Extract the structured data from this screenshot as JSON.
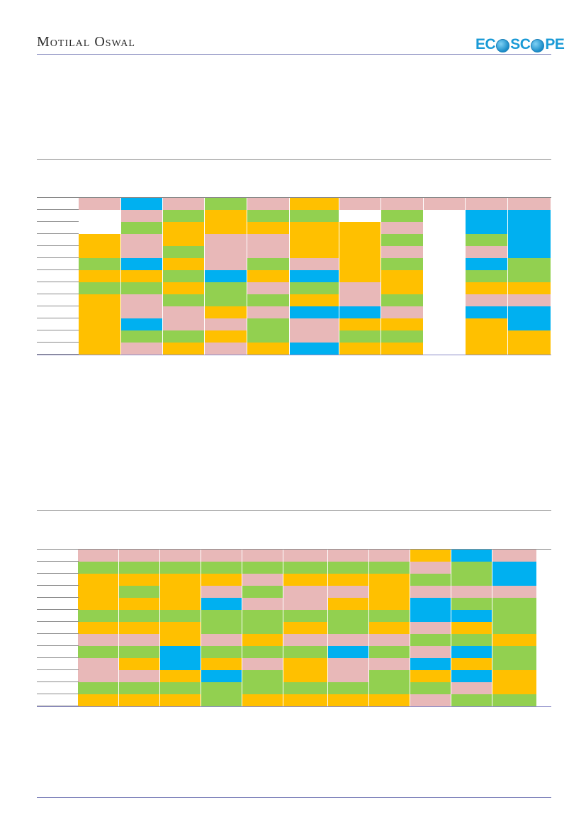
{
  "header": {
    "brand": "Motilal Oswal",
    "logo_left": "EC",
    "logo_right": "SC",
    "logo_end": "PE"
  },
  "colors": {
    "pink": "#E8B8B8",
    "blue": "#00B0F0",
    "green": "#92D050",
    "gold": "#FFC000",
    "white": "#FFFFFF"
  },
  "heatmaps": [
    {
      "columns": 12,
      "rows": [
        [
          "",
          "pink",
          "blue",
          "pink",
          "green",
          "pink",
          "gold",
          "pink",
          "pink",
          "pink",
          "pink",
          "pink"
        ],
        [
          "",
          "white",
          "pink",
          "green",
          "gold",
          "green",
          "green",
          "white",
          "green",
          "white",
          "blue",
          "blue"
        ],
        [
          "",
          "white",
          "green",
          "gold",
          "gold",
          "gold",
          "gold",
          "gold",
          "pink",
          "white",
          "blue",
          "blue"
        ],
        [
          "",
          "gold",
          "pink",
          "gold",
          "pink",
          "pink",
          "gold",
          "gold",
          "green",
          "white",
          "green",
          "blue"
        ],
        [
          "",
          "gold",
          "pink",
          "green",
          "pink",
          "pink",
          "gold",
          "gold",
          "pink",
          "white",
          "pink",
          "blue"
        ],
        [
          "",
          "green",
          "blue",
          "gold",
          "pink",
          "green",
          "pink",
          "gold",
          "green",
          "white",
          "blue",
          "green"
        ],
        [
          "",
          "gold",
          "gold",
          "green",
          "blue",
          "gold",
          "blue",
          "gold",
          "gold",
          "white",
          "green",
          "green"
        ],
        [
          "",
          "green",
          "green",
          "gold",
          "green",
          "pink",
          "green",
          "pink",
          "gold",
          "white",
          "gold",
          "gold"
        ],
        [
          "",
          "gold",
          "pink",
          "green",
          "green",
          "green",
          "gold",
          "pink",
          "green",
          "white",
          "pink",
          "pink"
        ],
        [
          "",
          "gold",
          "pink",
          "pink",
          "gold",
          "pink",
          "blue",
          "blue",
          "pink",
          "white",
          "blue",
          "blue"
        ],
        [
          "",
          "gold",
          "blue",
          "pink",
          "pink",
          "green",
          "pink",
          "gold",
          "gold",
          "white",
          "gold",
          "blue"
        ],
        [
          "",
          "gold",
          "green",
          "green",
          "gold",
          "green",
          "pink",
          "green",
          "green",
          "white",
          "gold",
          "gold"
        ],
        [
          "",
          "gold",
          "pink",
          "gold",
          "pink",
          "gold",
          "blue",
          "gold",
          "gold",
          "white",
          "gold",
          "gold"
        ]
      ]
    },
    {
      "columns": 12,
      "rows": [
        [
          "",
          "pink",
          "pink",
          "pink",
          "pink",
          "pink",
          "pink",
          "pink",
          "pink",
          "gold",
          "blue",
          "pink"
        ],
        [
          "",
          "green",
          "green",
          "green",
          "green",
          "green",
          "green",
          "green",
          "green",
          "pink",
          "green",
          "blue"
        ],
        [
          "",
          "gold",
          "gold",
          "gold",
          "gold",
          "pink",
          "gold",
          "gold",
          "gold",
          "green",
          "green",
          "blue"
        ],
        [
          "",
          "gold",
          "green",
          "gold",
          "pink",
          "green",
          "pink",
          "pink",
          "gold",
          "pink",
          "pink",
          "pink"
        ],
        [
          "",
          "gold",
          "gold",
          "gold",
          "blue",
          "pink",
          "pink",
          "gold",
          "gold",
          "blue",
          "green",
          "green"
        ],
        [
          "",
          "green",
          "green",
          "green",
          "green",
          "green",
          "green",
          "green",
          "green",
          "blue",
          "blue",
          "green"
        ],
        [
          "",
          "gold",
          "gold",
          "gold",
          "green",
          "green",
          "gold",
          "green",
          "gold",
          "pink",
          "gold",
          "green"
        ],
        [
          "",
          "pink",
          "pink",
          "gold",
          "pink",
          "gold",
          "pink",
          "pink",
          "pink",
          "green",
          "green",
          "gold"
        ],
        [
          "",
          "green",
          "green",
          "blue",
          "green",
          "green",
          "green",
          "blue",
          "green",
          "pink",
          "blue",
          "green"
        ],
        [
          "",
          "pink",
          "gold",
          "blue",
          "gold",
          "pink",
          "gold",
          "pink",
          "pink",
          "blue",
          "gold",
          "green"
        ],
        [
          "",
          "pink",
          "pink",
          "gold",
          "blue",
          "green",
          "gold",
          "pink",
          "green",
          "gold",
          "blue",
          "gold"
        ],
        [
          "",
          "green",
          "green",
          "green",
          "green",
          "green",
          "green",
          "green",
          "green",
          "green",
          "pink",
          "gold"
        ],
        [
          "",
          "gold",
          "gold",
          "gold",
          "green",
          "gold",
          "gold",
          "gold",
          "gold",
          "pink",
          "green",
          "green"
        ]
      ]
    }
  ]
}
